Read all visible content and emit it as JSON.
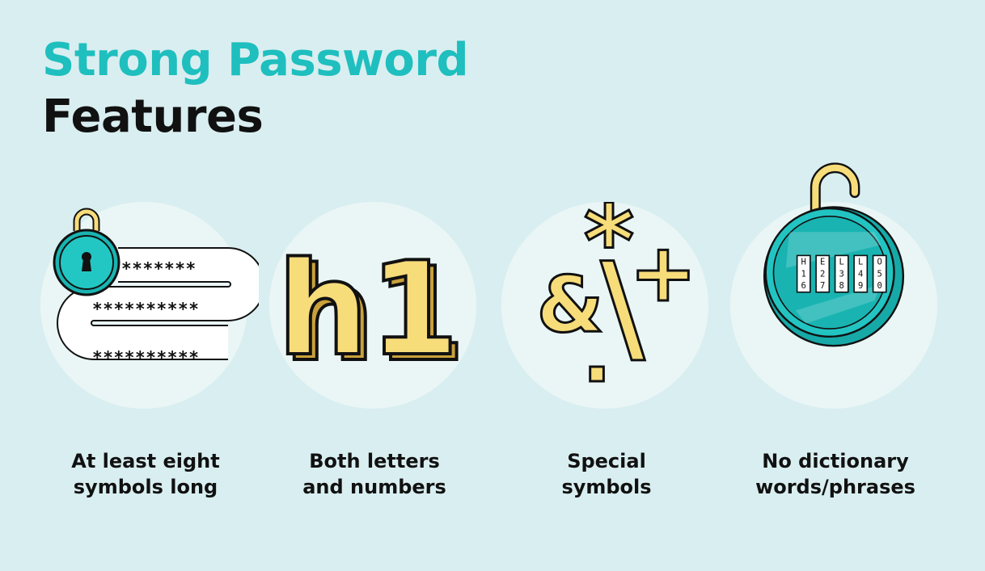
{
  "title": {
    "line1": "Strong Password",
    "line2": "Features"
  },
  "colors": {
    "background": "#d9eef0",
    "accent": "#1ebfbe",
    "circle": "#eaf6f6",
    "yellow": "#f7dc7a",
    "teal": "#19b4b2",
    "ink": "#111111"
  },
  "features": [
    {
      "caption_line1": "At least eight",
      "caption_line2": "symbols long",
      "icon": "lock-path-icon",
      "asterisks_row1": "*******",
      "asterisks_row2": "**********",
      "asterisks_row3": "**********"
    },
    {
      "caption_line1": "Both letters",
      "caption_line2": "and numbers",
      "icon": "h1-letters-icon",
      "glyphs": "h1"
    },
    {
      "caption_line1": "Special",
      "caption_line2": "symbols",
      "icon": "special-symbols-icon",
      "sym_star": "*",
      "sym_amp": "&",
      "sym_backslash": "\\",
      "sym_plus": "+",
      "sym_dot": "."
    },
    {
      "caption_line1": "No dictionary",
      "caption_line2": "words/phrases",
      "icon": "combination-lock-icon",
      "dials": [
        {
          "letter": "H",
          "d1": "1",
          "d2": "6"
        },
        {
          "letter": "E",
          "d1": "2",
          "d2": "7"
        },
        {
          "letter": "L",
          "d1": "3",
          "d2": "8"
        },
        {
          "letter": "L",
          "d1": "4",
          "d2": "9"
        },
        {
          "letter": "O",
          "d1": "5",
          "d2": "0"
        }
      ]
    }
  ]
}
